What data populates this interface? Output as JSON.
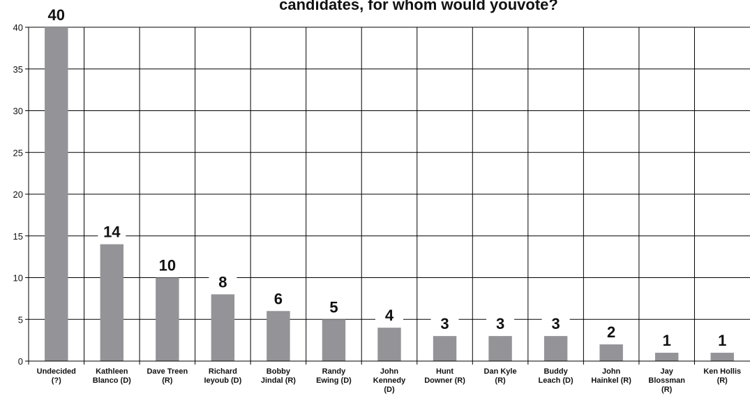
{
  "chart_data": {
    "type": "bar",
    "title": "candidates, for whom would youvote?",
    "xlabel": "",
    "ylabel": "",
    "ylim": [
      0,
      40
    ],
    "yticks": [
      0,
      5,
      10,
      15,
      20,
      25,
      30,
      35,
      40
    ],
    "grid": true,
    "categories": [
      [
        "Undecided",
        "(?)"
      ],
      [
        "Kathleen",
        "Blanco (D)"
      ],
      [
        "Dave Treen",
        "(R)"
      ],
      [
        "Richard",
        "Ieyoub (D)"
      ],
      [
        "Bobby",
        "Jindal (R)"
      ],
      [
        "Randy",
        "Ewing (D)"
      ],
      [
        "John",
        "Kennedy",
        "(D)"
      ],
      [
        "Hunt",
        "Downer (R)"
      ],
      [
        "Dan Kyle",
        "(R)"
      ],
      [
        "Buddy",
        "Leach (D)"
      ],
      [
        "John",
        "Hainkel (R)"
      ],
      [
        "Jay",
        "Blossman",
        "(R)"
      ],
      [
        "Ken Hollis",
        "(R)"
      ]
    ],
    "values": [
      40,
      14,
      10,
      8,
      6,
      5,
      4,
      3,
      3,
      3,
      2,
      1,
      1
    ],
    "bar_color": "#939398",
    "grid_color": "#000000"
  }
}
